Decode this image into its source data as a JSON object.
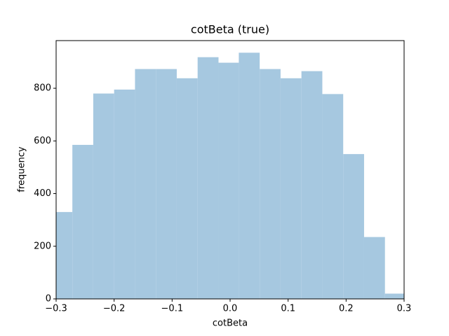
{
  "chart_data": {
    "type": "histogram",
    "title": "cotBeta (true)",
    "x_label": "cotBeta",
    "y_label": "frequency",
    "bins": [
      -0.308,
      -0.272,
      -0.236,
      -0.2,
      -0.164,
      -0.128,
      -0.092,
      -0.056,
      -0.02,
      0.015,
      0.051,
      0.087,
      0.123,
      0.159,
      0.195,
      0.231,
      0.267,
      0.303
    ],
    "values": [
      330,
      585,
      780,
      795,
      873,
      873,
      838,
      918,
      897,
      935,
      873,
      838,
      865,
      778,
      550,
      235,
      20
    ],
    "color": "#a6c8e0",
    "xlim": [
      -0.3,
      0.3
    ],
    "xticks": [
      {
        "value": -0.3,
        "label": "−0.3"
      },
      {
        "value": -0.2,
        "label": "−0.2"
      },
      {
        "value": -0.1,
        "label": "−0.1"
      },
      {
        "value": 0,
        "label": "0.0"
      },
      0.1,
      0.2,
      0.3
    ],
    "ylim": [
      0,
      981
    ],
    "yticks": [
      0,
      200,
      400,
      600,
      800
    ]
  }
}
